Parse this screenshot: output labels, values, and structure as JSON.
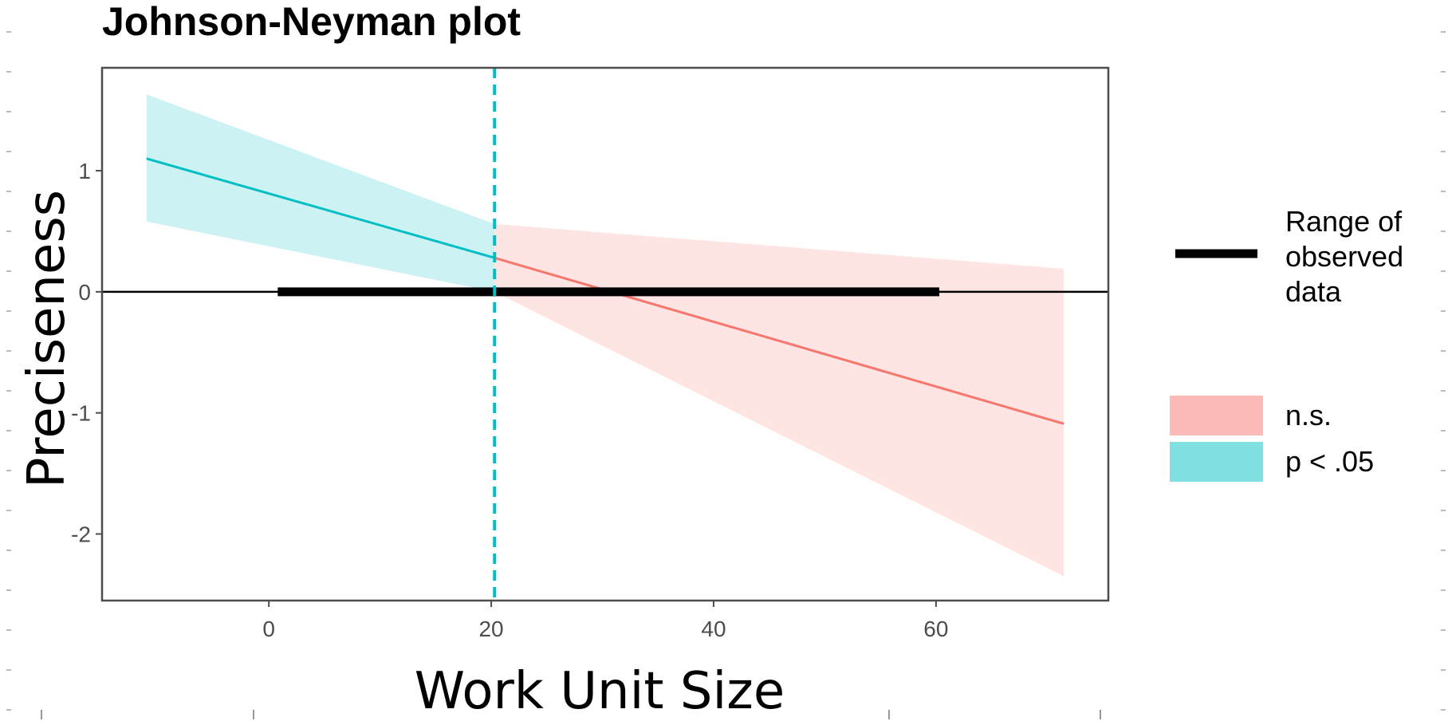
{
  "chart_data": {
    "type": "line",
    "title": "Johnson-Neyman plot",
    "xlabel": "Work Unit Size",
    "ylabel": "Preciseness",
    "xlim": [
      -15,
      75.5
    ],
    "ylim": [
      -2.55,
      1.85
    ],
    "x_ticks": [
      0,
      20,
      40,
      60
    ],
    "y_ticks": [
      -2,
      -1,
      0,
      1
    ],
    "x_tick_labels": [
      "0",
      "20",
      "40",
      "60"
    ],
    "y_tick_labels": [
      "-2",
      "-1",
      "0",
      "1"
    ],
    "grid": false,
    "jn_threshold": 20.3,
    "reference_line_y": 0,
    "observed_range": [
      0.8,
      60.3
    ],
    "series": [
      {
        "name": "p < .05",
        "color": "#00bfc4",
        "x": [
          -11,
          20.3
        ],
        "y": [
          1.1,
          0.28
        ],
        "ci_lower": [
          0.58,
          0.0
        ],
        "ci_upper": [
          1.63,
          0.56
        ]
      },
      {
        "name": "n.s.",
        "color": "#f8766d",
        "x": [
          20.3,
          71.5
        ],
        "y": [
          0.28,
          -1.09
        ],
        "ci_lower": [
          0.0,
          -2.35
        ],
        "ci_upper": [
          0.56,
          0.19
        ]
      }
    ],
    "legend": {
      "position": "right",
      "range_label_lines": [
        "Range of",
        "observed",
        "data"
      ],
      "items": [
        {
          "label": "n.s.",
          "color": "#f8766d"
        },
        {
          "label": "p < .05",
          "color": "#00bfc4"
        }
      ]
    }
  }
}
